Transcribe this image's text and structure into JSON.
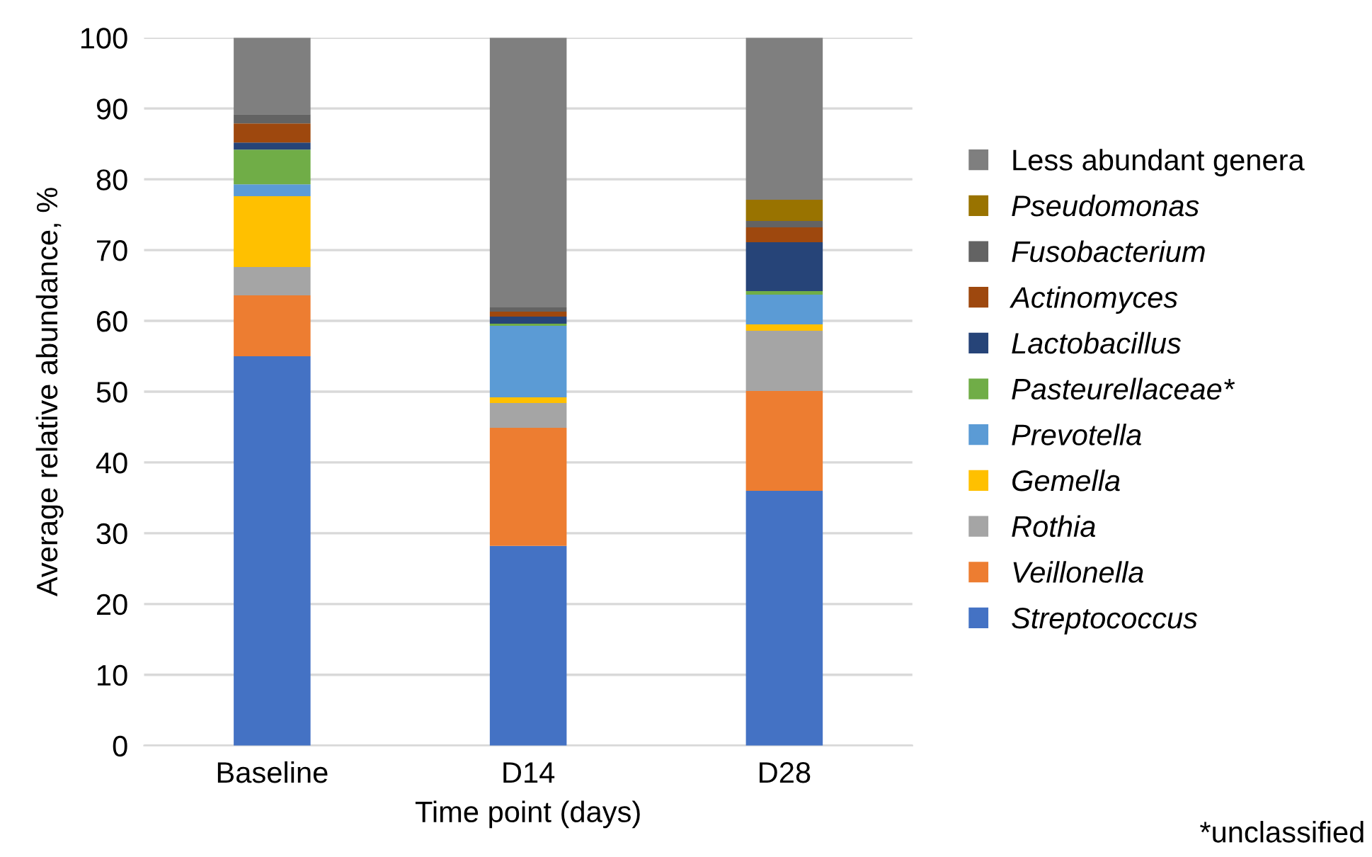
{
  "chart_data": {
    "type": "bar",
    "stacked": true,
    "xlabel": "Time point (days)",
    "ylabel": "Average relative abundance, %",
    "categories": [
      "Baseline",
      "D14",
      "D28"
    ],
    "series": [
      {
        "name": "Streptococcus",
        "color": "#4472c4",
        "values": [
          55,
          28.2,
          36
        ]
      },
      {
        "name": "Veillonella",
        "color": "#ed7d31",
        "values": [
          8.6,
          16.7,
          14.1
        ]
      },
      {
        "name": "Rothia",
        "color": "#a5a5a5",
        "values": [
          4,
          3.5,
          8.5
        ]
      },
      {
        "name": "Gemella",
        "color": "#ffc000",
        "values": [
          10,
          0.8,
          0.9
        ]
      },
      {
        "name": "Prevotella",
        "color": "#5b9bd5",
        "values": [
          1.7,
          10.1,
          4.2
        ]
      },
      {
        "name": "Pasteurellaceae*",
        "color": "#70ad47",
        "values": [
          4.9,
          0.3,
          0.5
        ]
      },
      {
        "name": "Lactobacillus",
        "color": "#264478",
        "values": [
          1,
          1,
          6.9
        ]
      },
      {
        "name": "Actinomyces",
        "color": "#9e480e",
        "values": [
          2.7,
          0.7,
          2.1
        ]
      },
      {
        "name": "Fusobacterium",
        "color": "#636363",
        "values": [
          1.3,
          0.6,
          0.9
        ]
      },
      {
        "name": "Pseudomonas",
        "color": "#997300",
        "values": [
          0,
          0,
          3
        ]
      },
      {
        "name": "Less abundant genera",
        "color": "#7f7f7f",
        "values": [
          10.8,
          38.1,
          22.9
        ]
      }
    ],
    "ylim": [
      0,
      100
    ],
    "yticks": [
      0,
      10,
      20,
      30,
      40,
      50,
      60,
      70,
      80,
      90,
      100
    ],
    "grid": "y",
    "legend": "right",
    "annotations": [
      "*unclassified"
    ]
  }
}
